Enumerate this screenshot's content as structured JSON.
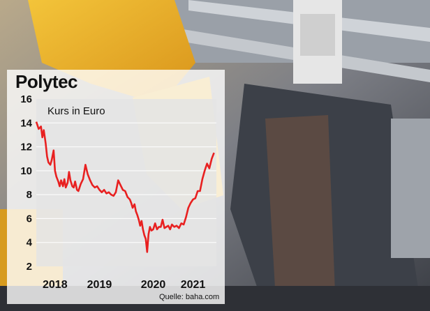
{
  "header": {
    "title": "Polytec"
  },
  "footer": {
    "source": "Quelle: baha.com"
  },
  "colors": {
    "line": "#e82020",
    "plot_bg": "#e4e4e4",
    "panel_bg": "#ffffff"
  },
  "chart_data": {
    "type": "line",
    "title": "Polytec",
    "ylabel": "Kurs in Euro",
    "ylim": [
      2,
      16
    ],
    "yticks": [
      2,
      4,
      6,
      8,
      10,
      12,
      14,
      16
    ],
    "xlim": [
      2017.6,
      2021.45
    ],
    "xticks": [
      {
        "label": "2018",
        "value": 2018.0
      },
      {
        "label": "2019",
        "value": 2018.95
      },
      {
        "label": "2020",
        "value": 2020.1
      },
      {
        "label": "2021",
        "value": 2020.95
      }
    ],
    "grid": true,
    "series": [
      {
        "x": [
          2017.6,
          2017.65,
          2017.7,
          2017.73,
          2017.76,
          2017.8,
          2017.83,
          2017.86,
          2017.9,
          2017.93,
          2017.97,
          2018.0,
          2018.03,
          2018.07,
          2018.1,
          2018.13,
          2018.17,
          2018.2,
          2018.23,
          2018.27,
          2018.3,
          2018.33,
          2018.37,
          2018.4,
          2018.43,
          2018.47,
          2018.5,
          2018.55,
          2018.6,
          2018.65,
          2018.7,
          2018.75,
          2018.8,
          2018.85,
          2018.9,
          2018.95,
          2019.0,
          2019.05,
          2019.1,
          2019.15,
          2019.2,
          2019.25,
          2019.3,
          2019.35,
          2019.4,
          2019.45,
          2019.5,
          2019.55,
          2019.6,
          2019.63,
          2019.66,
          2019.7,
          2019.73,
          2019.76,
          2019.79,
          2019.82,
          2019.85,
          2019.88,
          2019.91,
          2019.94,
          2019.97,
          2020.0,
          2020.03,
          2020.06,
          2020.1,
          2020.14,
          2020.18,
          2020.22,
          2020.26,
          2020.3,
          2020.34,
          2020.38,
          2020.42,
          2020.46,
          2020.5,
          2020.55,
          2020.6,
          2020.65,
          2020.7,
          2020.75,
          2020.8,
          2020.85,
          2020.9,
          2020.95,
          2021.0,
          2021.05,
          2021.1,
          2021.15,
          2021.2,
          2021.25,
          2021.3,
          2021.35,
          2021.4
        ],
        "y": [
          14.1,
          13.5,
          13.7,
          12.8,
          13.4,
          12.3,
          11.2,
          10.7,
          10.5,
          10.9,
          11.7,
          10.0,
          9.5,
          9.1,
          8.7,
          9.2,
          8.7,
          9.3,
          8.6,
          9.0,
          9.9,
          9.2,
          8.7,
          8.6,
          9.1,
          8.4,
          8.3,
          8.9,
          9.3,
          10.5,
          9.7,
          9.2,
          8.8,
          8.6,
          8.7,
          8.4,
          8.2,
          8.4,
          8.1,
          8.2,
          8.0,
          7.9,
          8.2,
          9.2,
          8.8,
          8.4,
          8.3,
          7.8,
          7.6,
          7.3,
          6.9,
          7.2,
          6.6,
          6.3,
          5.9,
          5.4,
          5.8,
          5.1,
          4.6,
          4.3,
          3.2,
          4.7,
          5.3,
          5.0,
          5.1,
          5.6,
          5.1,
          5.3,
          5.3,
          5.9,
          5.2,
          5.3,
          5.4,
          5.1,
          5.5,
          5.3,
          5.4,
          5.2,
          5.6,
          5.5,
          6.1,
          6.9,
          7.3,
          7.6,
          7.7,
          8.3,
          8.3,
          9.3,
          10.0,
          10.6,
          10.2,
          11.0,
          11.5
        ]
      }
    ]
  }
}
